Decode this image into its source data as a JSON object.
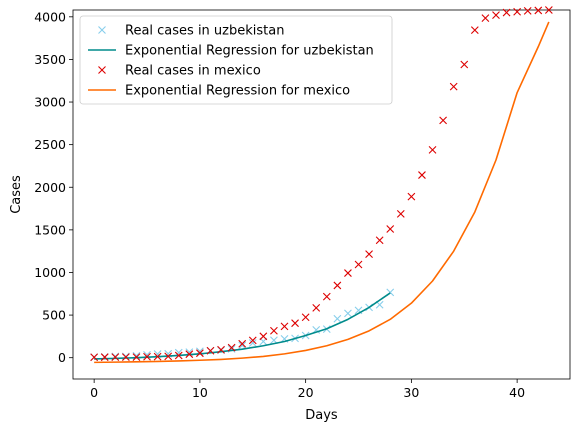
{
  "chart_data": {
    "type": "line",
    "title": "",
    "xlabel": "Days",
    "ylabel": "Cases",
    "xlim": [
      -2,
      45
    ],
    "ylim": [
      -250,
      4080
    ],
    "xticks": [
      0,
      10,
      20,
      30,
      40
    ],
    "yticks": [
      0,
      500,
      1000,
      1500,
      2000,
      2500,
      3000,
      3500,
      4000
    ],
    "grid": false,
    "legend_position": "upper-left",
    "series": [
      {
        "name": "Real cases in uzbekistan",
        "kind": "scatter",
        "marker": "x",
        "color": "#87ceeb",
        "x": [
          0,
          1,
          2,
          3,
          4,
          5,
          6,
          7,
          8,
          9,
          10,
          11,
          12,
          13,
          14,
          15,
          16,
          17,
          18,
          19,
          20,
          21,
          22,
          23,
          24,
          25,
          26,
          27,
          28
        ],
        "y": [
          6,
          10,
          15,
          16,
          23,
          33,
          43,
          46,
          60,
          65,
          75,
          81,
          88,
          104,
          145,
          172,
          190,
          205,
          221,
          227,
          260,
          327,
          335,
          457,
          520,
          555,
          590,
          621,
          766
        ]
      },
      {
        "name": "Exponential Regression for uzbekistan",
        "kind": "line",
        "color": "#008b8b",
        "x": [
          0,
          2,
          4,
          6,
          8,
          10,
          12,
          14,
          16,
          18,
          20,
          22,
          24,
          26,
          28
        ],
        "y": [
          -15,
          -8,
          0,
          12,
          26,
          45,
          70,
          100,
          140,
          190,
          260,
          340,
          450,
          590,
          760
        ]
      },
      {
        "name": "Real cases in mexico",
        "kind": "scatter",
        "marker": "x",
        "color": "#dd0000",
        "x": [
          0,
          1,
          2,
          3,
          4,
          5,
          6,
          7,
          8,
          9,
          10,
          11,
          12,
          13,
          14,
          15,
          16,
          17,
          18,
          19,
          20,
          21,
          22,
          23,
          24,
          25,
          26,
          27,
          28,
          29,
          30,
          31,
          32,
          33,
          34,
          35,
          36,
          37,
          38,
          39,
          40,
          41,
          42,
          43
        ],
        "y": [
          5,
          6,
          7,
          7,
          7,
          11,
          12,
          15,
          26,
          41,
          53,
          82,
          93,
          118,
          164,
          203,
          251,
          316,
          367,
          405,
          475,
          585,
          717,
          848,
          993,
          1094,
          1215,
          1378,
          1510,
          1688,
          1890,
          2143,
          2439,
          2785,
          3181,
          3441,
          3844,
          3985,
          4020,
          4050,
          4060,
          4070,
          4075,
          4080
        ]
      },
      {
        "name": "Exponential Regression for mexico",
        "kind": "line",
        "color": "#ff6a00",
        "x": [
          0,
          2,
          4,
          6,
          8,
          10,
          12,
          14,
          16,
          18,
          20,
          22,
          24,
          26,
          28,
          30,
          32,
          34,
          36,
          38,
          40,
          42,
          43
        ],
        "y": [
          -55,
          -52,
          -48,
          -44,
          -38,
          -30,
          -20,
          -5,
          15,
          45,
          85,
          140,
          215,
          315,
          450,
          640,
          900,
          1250,
          1710,
          2320,
          3110,
          3650,
          3940
        ]
      }
    ]
  }
}
